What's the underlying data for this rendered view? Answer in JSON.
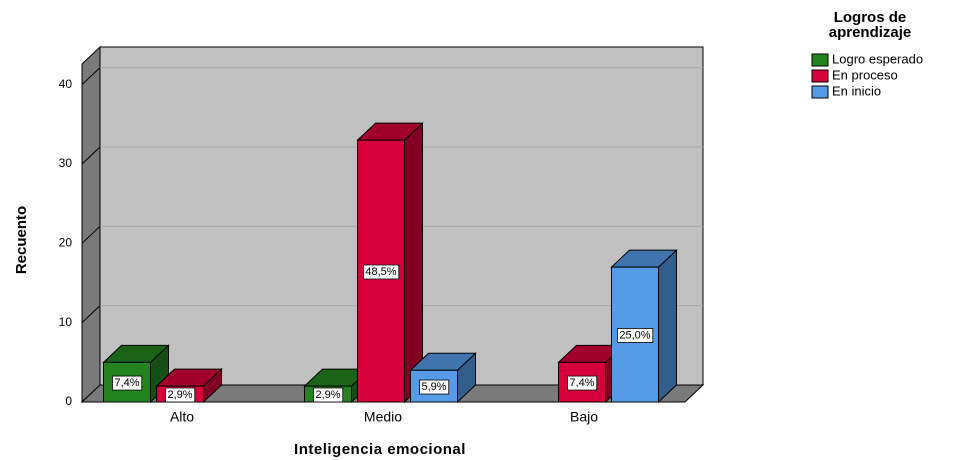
{
  "chart_data": {
    "type": "bar3d",
    "x_label": "Inteligencia emocional",
    "y_label": "Recuento",
    "legend_title": "Logros de aprendizaje",
    "legend": "right",
    "categories": [
      "Alto",
      "Medio",
      "Bajo"
    ],
    "series": [
      {
        "name": "Logro esperado",
        "color": "#23841f",
        "values": [
          5,
          2,
          null
        ],
        "value_labels": [
          "7,4%",
          "2,9%",
          null
        ]
      },
      {
        "name": "En proceso",
        "color": "#d8003a",
        "values": [
          2,
          33,
          5
        ],
        "value_labels": [
          "2,9%",
          "48,5%",
          "7,4%"
        ]
      },
      {
        "name": "En inicio",
        "color": "#559be8",
        "values": [
          null,
          4,
          17
        ],
        "value_labels": [
          null,
          "5,9%",
          "25,0%"
        ]
      }
    ],
    "ylim": [
      0,
      42.6
    ],
    "yticks": [
      0,
      10,
      20,
      30,
      40
    ],
    "grid": true
  }
}
